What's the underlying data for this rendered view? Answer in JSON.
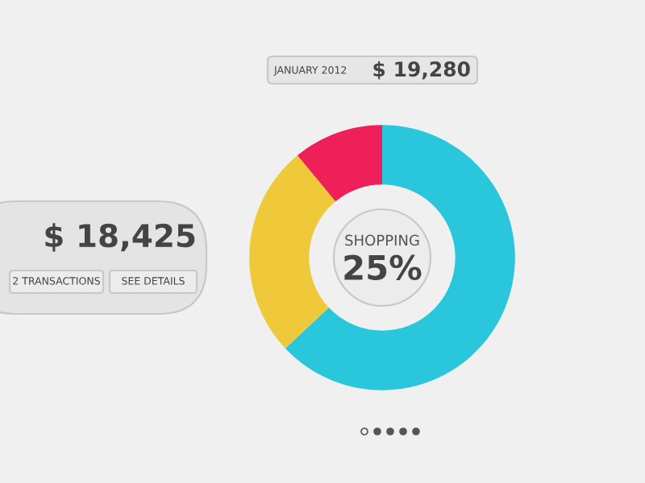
{
  "chart_data": {
    "type": "donut",
    "categories": [
      null,
      null,
      null
    ],
    "values": [
      63,
      26,
      11
    ],
    "colors": [
      "#29c6dc",
      "#f0c93a",
      "#ef1f5a"
    ],
    "annotations": [
      "JANUARY 2012",
      "$ 19,280",
      "$ 18,425",
      "2 TRANSACTIONS",
      "SEE DETAILS",
      "SHOPPING",
      "25%"
    ]
  }
}
